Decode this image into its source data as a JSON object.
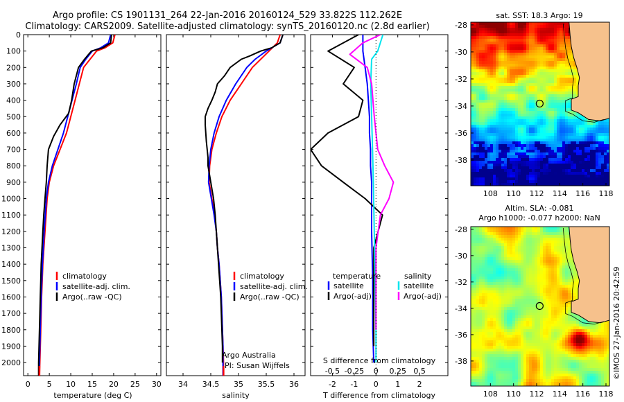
{
  "header": {
    "line1": "Argo profile: CS 1901131_264 22-Jan-2016 20160124_529 33.822S 112.262E",
    "line2": "Climatology: CARS2009. Satellite-adjusted climatology: synTS_20160120.nc (2.8d earlier)"
  },
  "colors": {
    "climatology": "#ff0000",
    "satellite": "#0000ff",
    "argo": "#000000",
    "salinity_satellite": "#00e5ee",
    "salinity_argo": "#ff00ff",
    "land": "#f6c18c"
  },
  "chart_data": [
    {
      "type": "line",
      "panel": "temperature",
      "xlabel": "temperature (deg C)",
      "ylabel": "",
      "xlim": [
        -1,
        31
      ],
      "ylim": [
        2080,
        0
      ],
      "xticks": [
        0,
        5,
        10,
        15,
        20,
        25,
        30
      ],
      "yticks": [
        0,
        100,
        200,
        300,
        400,
        500,
        600,
        700,
        800,
        900,
        1000,
        1100,
        1200,
        1300,
        1400,
        1500,
        1600,
        1700,
        1800,
        1900,
        2000
      ],
      "legend": [
        "climatology",
        "satellite-adj. clim.",
        "Argo(..raw -QC)"
      ],
      "series": [
        {
          "name": "climatology",
          "points": [
            [
              20.3,
              0
            ],
            [
              19.8,
              50
            ],
            [
              18.0,
              80
            ],
            [
              16.0,
              100
            ],
            [
              14.5,
              150
            ],
            [
              13.0,
              200
            ],
            [
              12.0,
              300
            ],
            [
              11.0,
              400
            ],
            [
              10.0,
              500
            ],
            [
              9.0,
              600
            ],
            [
              7.5,
              700
            ],
            [
              6.0,
              800
            ],
            [
              5.0,
              900
            ],
            [
              4.5,
              1000
            ],
            [
              4.0,
              1200
            ],
            [
              3.5,
              1400
            ],
            [
              3.2,
              1600
            ],
            [
              3.0,
              1800
            ],
            [
              2.8,
              2000
            ],
            [
              2.7,
              2080
            ]
          ]
        },
        {
          "name": "satellite-adj. clim.",
          "points": [
            [
              19.3,
              0
            ],
            [
              18.8,
              50
            ],
            [
              17.0,
              80
            ],
            [
              15.0,
              100
            ],
            [
              13.5,
              150
            ],
            [
              12.2,
              200
            ],
            [
              11.3,
              300
            ],
            [
              10.3,
              400
            ],
            [
              9.3,
              500
            ],
            [
              8.3,
              600
            ],
            [
              7.0,
              700
            ],
            [
              5.7,
              800
            ],
            [
              4.8,
              900
            ],
            [
              4.3,
              1000
            ],
            [
              3.8,
              1200
            ],
            [
              3.4,
              1400
            ],
            [
              3.1,
              1600
            ],
            [
              2.9,
              1800
            ],
            [
              2.7,
              2000
            ],
            [
              2.6,
              2080
            ]
          ]
        },
        {
          "name": "Argo(..raw -QC)",
          "points": [
            [
              19.5,
              0
            ],
            [
              19.3,
              50
            ],
            [
              17.5,
              80
            ],
            [
              14.8,
              100
            ],
            [
              13.2,
              150
            ],
            [
              11.8,
              200
            ],
            [
              10.8,
              300
            ],
            [
              10.2,
              400
            ],
            [
              9.5,
              480
            ],
            [
              7.5,
              550
            ],
            [
              6.0,
              620
            ],
            [
              4.8,
              700
            ],
            [
              4.5,
              800
            ],
            [
              4.3,
              900
            ],
            [
              4.0,
              1000
            ],
            [
              3.7,
              1100
            ],
            [
              3.5,
              1200
            ],
            [
              3.3,
              1300
            ],
            [
              3.1,
              1400
            ],
            [
              3.0,
              1500
            ],
            [
              2.9,
              1600
            ],
            [
              2.8,
              1700
            ],
            [
              2.7,
              1800
            ],
            [
              2.6,
              1900
            ],
            [
              2.5,
              2000
            ],
            [
              2.5,
              2080
            ]
          ]
        }
      ]
    },
    {
      "type": "line",
      "panel": "salinity",
      "xlabel": "salinity",
      "ylabel": "",
      "xlim": [
        33.7,
        36.2
      ],
      "ylim": [
        2080,
        0
      ],
      "xticks": [
        34,
        34.5,
        35,
        35.5,
        36
      ],
      "legend": [
        "climatology",
        "satellite-adj. clim.",
        "Argo(..raw -QC)"
      ],
      "series": [
        {
          "name": "climatology",
          "points": [
            [
              35.75,
              0
            ],
            [
              35.7,
              50
            ],
            [
              35.55,
              100
            ],
            [
              35.4,
              150
            ],
            [
              35.25,
              200
            ],
            [
              35.05,
              300
            ],
            [
              34.85,
              400
            ],
            [
              34.7,
              500
            ],
            [
              34.6,
              600
            ],
            [
              34.52,
              700
            ],
            [
              34.48,
              800
            ],
            [
              34.47,
              900
            ],
            [
              34.52,
              1000
            ],
            [
              34.57,
              1100
            ],
            [
              34.6,
              1200
            ],
            [
              34.62,
              1300
            ],
            [
              34.65,
              1400
            ],
            [
              34.67,
              1500
            ],
            [
              34.69,
              1600
            ],
            [
              34.7,
              1700
            ],
            [
              34.71,
              1800
            ],
            [
              34.72,
              1900
            ],
            [
              34.73,
              2000
            ],
            [
              34.73,
              2080
            ]
          ]
        },
        {
          "name": "satellite-adj. clim.",
          "points": [
            [
              35.8,
              0
            ],
            [
              35.75,
              50
            ],
            [
              35.5,
              100
            ],
            [
              35.3,
              150
            ],
            [
              35.15,
              200
            ],
            [
              34.95,
              300
            ],
            [
              34.78,
              400
            ],
            [
              34.65,
              500
            ],
            [
              34.56,
              600
            ],
            [
              34.5,
              700
            ],
            [
              34.47,
              800
            ],
            [
              34.46,
              900
            ],
            [
              34.51,
              1000
            ],
            [
              34.56,
              1100
            ],
            [
              34.6,
              1200
            ],
            [
              34.62,
              1300
            ],
            [
              34.65,
              1400
            ],
            [
              34.67,
              1500
            ],
            [
              34.69,
              1600
            ],
            [
              34.7,
              1700
            ],
            [
              34.71,
              1800
            ],
            [
              34.72,
              1900
            ],
            [
              34.72,
              2000
            ],
            [
              34.72,
              2080
            ]
          ]
        },
        {
          "name": "Argo(..raw -QC)",
          "points": [
            [
              35.8,
              0
            ],
            [
              35.75,
              50
            ],
            [
              35.6,
              80
            ],
            [
              35.4,
              100
            ],
            [
              35.2,
              130
            ],
            [
              35.05,
              150
            ],
            [
              34.85,
              200
            ],
            [
              34.75,
              250
            ],
            [
              34.62,
              300
            ],
            [
              34.58,
              350
            ],
            [
              34.52,
              400
            ],
            [
              34.45,
              450
            ],
            [
              34.4,
              500
            ],
            [
              34.4,
              550
            ],
            [
              34.42,
              650
            ],
            [
              34.45,
              750
            ],
            [
              34.45,
              800
            ],
            [
              34.5,
              900
            ],
            [
              34.55,
              1000
            ],
            [
              34.58,
              1100
            ],
            [
              34.6,
              1200
            ],
            [
              34.62,
              1300
            ],
            [
              34.64,
              1400
            ],
            [
              34.66,
              1500
            ],
            [
              34.68,
              1600
            ],
            [
              34.69,
              1700
            ],
            [
              34.7,
              1800
            ],
            [
              34.71,
              1900
            ],
            [
              34.71,
              2000
            ]
          ]
        }
      ]
    },
    {
      "type": "line",
      "panel": "difference",
      "xlabel": "T difference from climatology",
      "xlabel_top": "S difference from climatology",
      "xlim": [
        -3,
        3.3
      ],
      "ylim": [
        2080,
        0
      ],
      "xticks": [
        -2,
        -1,
        0,
        1,
        2
      ],
      "sticks": [
        {
          "v": -0.5,
          "label": "-0.5"
        },
        {
          "v": -0.25,
          "label": "-0.25"
        },
        {
          "v": 0,
          "label": "0"
        },
        {
          "v": 0.25,
          "label": "0.25"
        },
        {
          "v": 0.5,
          "label": "0.5"
        }
      ],
      "s_scale": 4,
      "legend_title_t": "temperature",
      "legend_title_s": "salinity",
      "legend": [
        "satellite",
        "Argo(-adj)",
        "satellite",
        "Argo(-adj)"
      ],
      "series": [
        {
          "name": "T satellite",
          "points": [
            [
              -0.6,
              0
            ],
            [
              -0.6,
              100
            ],
            [
              -0.5,
              200
            ],
            [
              -0.4,
              300
            ],
            [
              -0.35,
              400
            ],
            [
              -0.3,
              500
            ],
            [
              -0.3,
              600
            ],
            [
              -0.25,
              700
            ],
            [
              -0.25,
              800
            ],
            [
              -0.2,
              900
            ],
            [
              -0.2,
              1000
            ],
            [
              -0.2,
              1200
            ],
            [
              -0.15,
              1500
            ],
            [
              -0.15,
              1800
            ],
            [
              -0.1,
              2000
            ]
          ]
        },
        {
          "name": "T Argo(-adj)",
          "points": [
            [
              -0.8,
              0
            ],
            [
              -2.2,
              100
            ],
            [
              -1.0,
              200
            ],
            [
              -1.5,
              300
            ],
            [
              -0.6,
              400
            ],
            [
              -0.8,
              500
            ],
            [
              -2.2,
              600
            ],
            [
              -3.0,
              700
            ],
            [
              -2.5,
              800
            ],
            [
              -1.5,
              900
            ],
            [
              -0.5,
              1000
            ],
            [
              0.3,
              1100
            ],
            [
              0.1,
              1200
            ],
            [
              -0.1,
              1300
            ],
            [
              -0.1,
              1500
            ],
            [
              -0.1,
              1800
            ],
            [
              -0.1,
              1900
            ]
          ]
        },
        {
          "name": "S satellite",
          "points": [
            [
              0.08,
              0
            ],
            [
              0.02,
              100
            ],
            [
              -0.05,
              150
            ],
            [
              -0.06,
              300
            ],
            [
              -0.05,
              500
            ],
            [
              -0.04,
              700
            ],
            [
              -0.03,
              900
            ],
            [
              -0.02,
              1200
            ],
            [
              -0.01,
              1500
            ],
            [
              0,
              1800
            ],
            [
              0,
              2000
            ]
          ]
        },
        {
          "name": "S Argo(-adj)",
          "points": [
            [
              0.05,
              0
            ],
            [
              -0.15,
              50
            ],
            [
              -0.3,
              120
            ],
            [
              -0.1,
              200
            ],
            [
              -0.05,
              300
            ],
            [
              -0.02,
              500
            ],
            [
              0.02,
              700
            ],
            [
              0.1,
              800
            ],
            [
              0.2,
              900
            ],
            [
              0.15,
              1000
            ],
            [
              0.05,
              1100
            ],
            [
              0,
              1300
            ],
            [
              0,
              1600
            ],
            [
              0,
              1800
            ]
          ]
        }
      ]
    },
    {
      "type": "heatmap",
      "panel": "sat-sst-map",
      "title": "sat. SST: 18.3  Argo: 19",
      "xlim": [
        106.3,
        118.3
      ],
      "ylim": [
        -39.9,
        -27.8
      ],
      "xticks": [
        108,
        110,
        112,
        114,
        116,
        118
      ],
      "yticks": [
        -28,
        -30,
        -32,
        -34,
        -36,
        -38
      ],
      "argo_position": {
        "lon": 112.262,
        "lat": -33.822
      }
    },
    {
      "type": "heatmap",
      "panel": "altimetry-map",
      "title": "Altim. SLA: -0.081",
      "subtitle": "Argo h1000: -0.077 h2000: NaN",
      "xlim": [
        106.3,
        118.3
      ],
      "ylim": [
        -39.9,
        -27.8
      ],
      "xticks": [
        108,
        110,
        112,
        114,
        116,
        118
      ],
      "yticks": [
        -28,
        -30,
        -32,
        -34,
        -36,
        -38
      ],
      "argo_position": {
        "lon": 112.262,
        "lat": -33.822
      }
    }
  ],
  "annotations": {
    "salinity_note1": "Argo Australia",
    "salinity_note2": "PI: Susan Wijffels"
  },
  "footer": {
    "stamp": "©IMOS 27-Jan-2016 20:42:59"
  }
}
